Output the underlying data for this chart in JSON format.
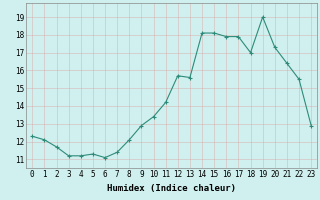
{
  "x": [
    0,
    1,
    2,
    3,
    4,
    5,
    6,
    7,
    8,
    9,
    10,
    11,
    12,
    13,
    14,
    15,
    16,
    17,
    18,
    19,
    20,
    21,
    22,
    23
  ],
  "y": [
    12.3,
    12.1,
    11.7,
    11.2,
    11.2,
    11.3,
    11.1,
    11.4,
    12.1,
    12.9,
    13.4,
    14.2,
    15.7,
    15.6,
    18.1,
    18.1,
    17.9,
    17.9,
    17.0,
    19.0,
    17.3,
    16.4,
    15.5,
    12.9
  ],
  "line_color": "#2e8b7a",
  "marker": "+",
  "marker_size": 3,
  "marker_linewidth": 0.8,
  "bg_color": "#cff0ee",
  "grid_color_major": "#d8b0b0",
  "grid_color_minor": "#e8d0d0",
  "xlabel": "Humidex (Indice chaleur)",
  "ylim": [
    10.5,
    19.8
  ],
  "xlim": [
    -0.5,
    23.5
  ],
  "yticks": [
    11,
    12,
    13,
    14,
    15,
    16,
    17,
    18,
    19
  ],
  "xticks": [
    0,
    1,
    2,
    3,
    4,
    5,
    6,
    7,
    8,
    9,
    10,
    11,
    12,
    13,
    14,
    15,
    16,
    17,
    18,
    19,
    20,
    21,
    22,
    23
  ],
  "label_fontsize": 6.5,
  "tick_fontsize": 5.5
}
